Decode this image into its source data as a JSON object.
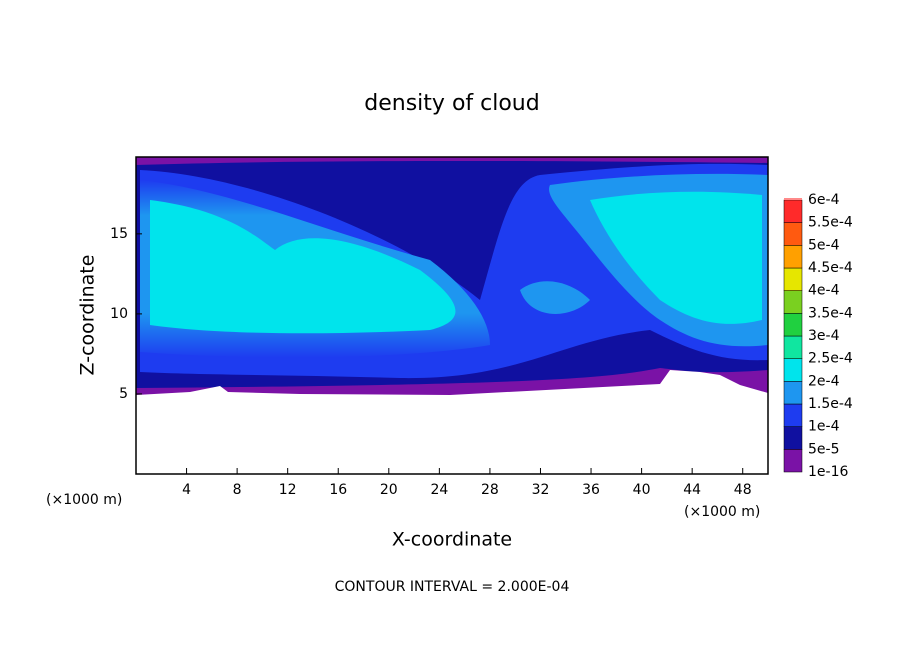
{
  "chart_data": {
    "type": "contour",
    "title": "density of cloud",
    "xlabel": "X-coordinate",
    "ylabel": "Z-coordinate",
    "y_unit_label": "(×1000 m)",
    "x_unit_label": "(×1000 m)",
    "footer": "CONTOUR INTERVAL = 2.000E-04",
    "xlim": [
      0,
      50
    ],
    "xticks": [
      4,
      8,
      12,
      16,
      20,
      24,
      28,
      32,
      36,
      40,
      44,
      48
    ],
    "ylim": [
      0,
      19.8
    ],
    "yticks": [
      5,
      10,
      15
    ],
    "colorbar": {
      "ticks": [
        {
          "value": 1e-16,
          "label": "1e-16"
        },
        {
          "value": 5e-05,
          "label": "5e-5"
        },
        {
          "value": 0.0001,
          "label": "1e-4"
        },
        {
          "value": 0.00015,
          "label": "1.5e-4"
        },
        {
          "value": 0.0002,
          "label": "2e-4"
        },
        {
          "value": 0.00025,
          "label": "2.5e-4"
        },
        {
          "value": 0.0003,
          "label": "3e-4"
        },
        {
          "value": 0.00035,
          "label": "3.5e-4"
        },
        {
          "value": 0.0004,
          "label": "4e-4"
        },
        {
          "value": 0.00045,
          "label": "4.5e-4"
        },
        {
          "value": 0.0005,
          "label": "5e-4"
        },
        {
          "value": 0.00055,
          "label": "5.5e-4"
        },
        {
          "value": 0.0006,
          "label": "6e-4"
        }
      ],
      "colors": [
        "#7a12a6",
        "#1010a0",
        "#1e3cf0",
        "#1e96f0",
        "#00e4ec",
        "#10e6a0",
        "#20d040",
        "#7ad020",
        "#e6e600",
        "#ffa000",
        "#ff5a10",
        "#ff2a2a",
        "#ff8a8a"
      ]
    }
  }
}
